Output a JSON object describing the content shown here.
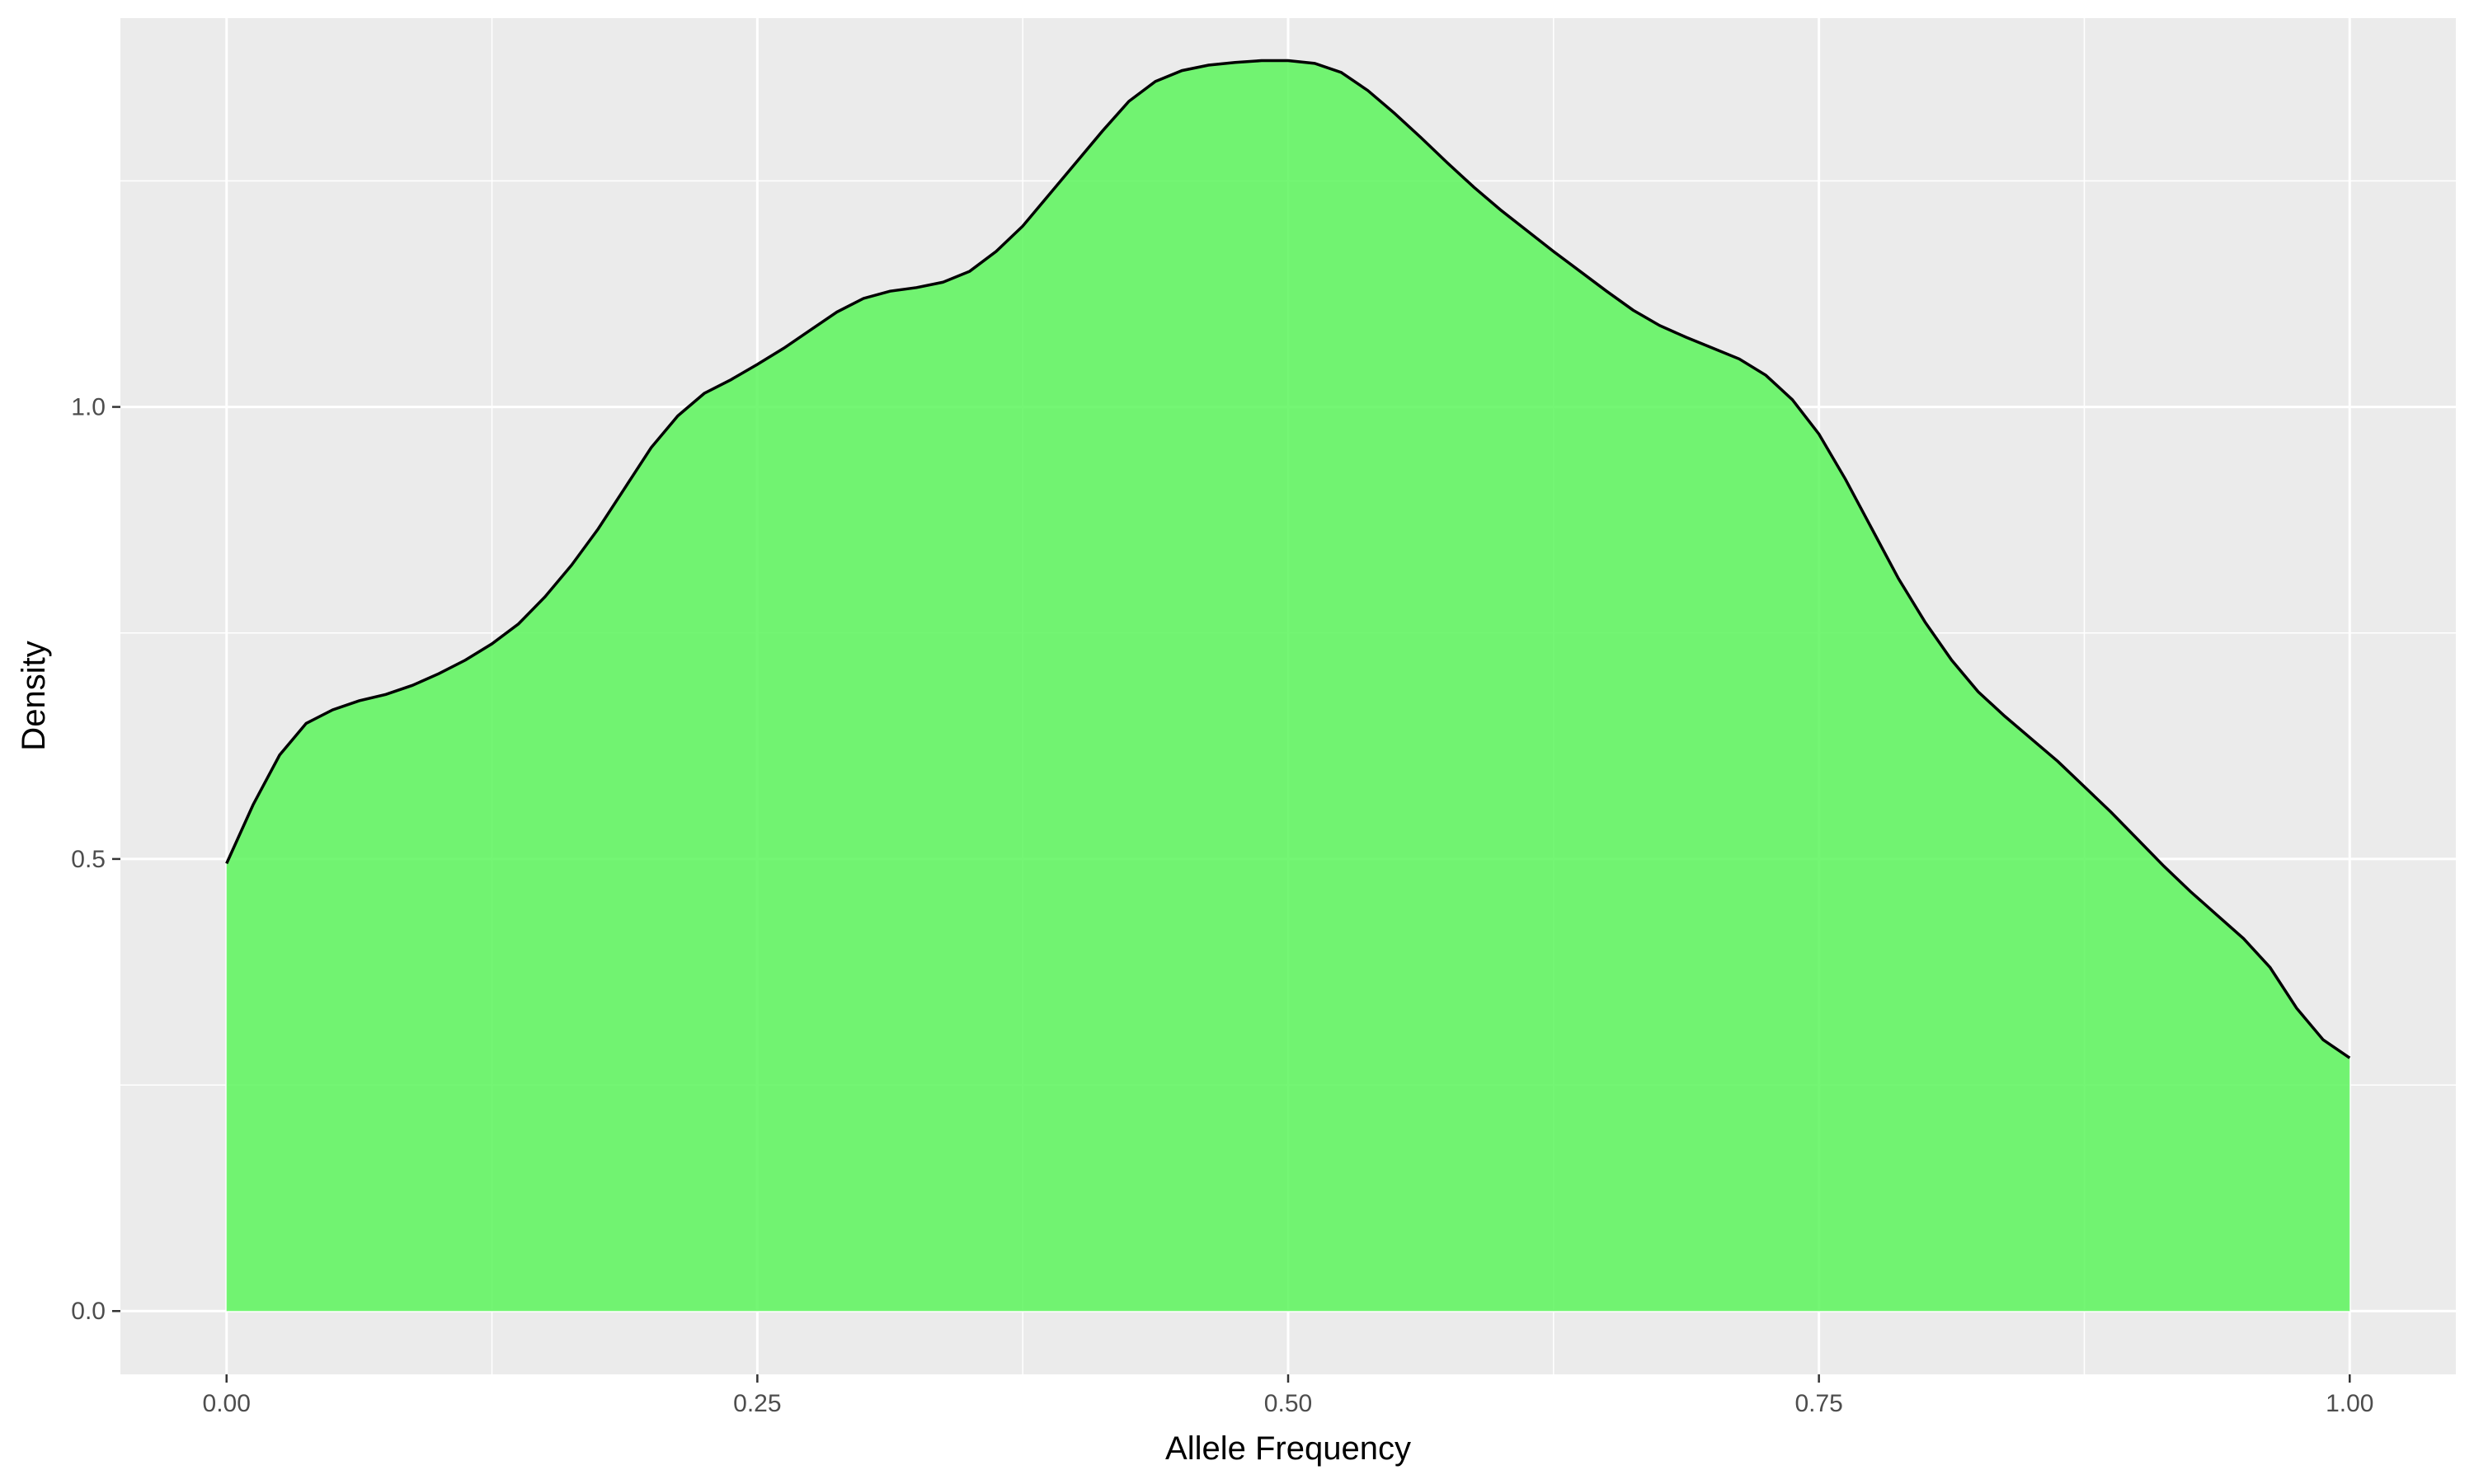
{
  "chart_data": {
    "type": "area",
    "xlabel": "Allele Frequency",
    "ylabel": "Density",
    "xlim": [
      -0.05,
      1.05
    ],
    "ylim": [
      -0.07,
      1.43
    ],
    "x_ticks": [
      0.0,
      0.25,
      0.5,
      0.75,
      1.0
    ],
    "x_tick_labels": [
      "0.00",
      "0.25",
      "0.50",
      "0.75",
      "1.00"
    ],
    "y_ticks": [
      0.0,
      0.5,
      1.0
    ],
    "y_tick_labels": [
      "0.0",
      "0.5",
      "1.0"
    ],
    "grid": true,
    "legend": "none",
    "colors": {
      "fill": "#5cf55c",
      "fill_opacity": 0.85,
      "line": "#000000",
      "panel": "#ebebeb",
      "grid": "#ffffff"
    },
    "series": [
      {
        "x": [
          0.0,
          0.0125,
          0.025,
          0.0375,
          0.05,
          0.0625,
          0.075,
          0.0875,
          0.1,
          0.1125,
          0.125,
          0.1375,
          0.15,
          0.1625,
          0.175,
          0.1875,
          0.2,
          0.2125,
          0.225,
          0.2375,
          0.25,
          0.2625,
          0.275,
          0.2875,
          0.3,
          0.3125,
          0.325,
          0.3375,
          0.35,
          0.3625,
          0.375,
          0.3875,
          0.4,
          0.4125,
          0.425,
          0.4375,
          0.45,
          0.4625,
          0.475,
          0.4875,
          0.5,
          0.5125,
          0.525,
          0.5375,
          0.55,
          0.5625,
          0.575,
          0.5875,
          0.6,
          0.6125,
          0.625,
          0.6375,
          0.65,
          0.6625,
          0.675,
          0.6875,
          0.7,
          0.7125,
          0.725,
          0.7375,
          0.75,
          0.7625,
          0.775,
          0.7875,
          0.8,
          0.8125,
          0.825,
          0.8375,
          0.85,
          0.8625,
          0.875,
          0.8875,
          0.9,
          0.9125,
          0.925,
          0.9375,
          0.95,
          0.9625,
          0.975,
          0.9875,
          1.0
        ],
        "y": [
          0.495,
          0.56,
          0.615,
          0.65,
          0.665,
          0.675,
          0.682,
          0.692,
          0.705,
          0.72,
          0.738,
          0.76,
          0.79,
          0.825,
          0.865,
          0.91,
          0.955,
          0.99,
          1.015,
          1.03,
          1.047,
          1.065,
          1.085,
          1.105,
          1.12,
          1.128,
          1.132,
          1.138,
          1.15,
          1.172,
          1.2,
          1.235,
          1.27,
          1.305,
          1.338,
          1.36,
          1.372,
          1.378,
          1.381,
          1.383,
          1.383,
          1.38,
          1.37,
          1.35,
          1.325,
          1.298,
          1.27,
          1.243,
          1.218,
          1.195,
          1.172,
          1.15,
          1.128,
          1.107,
          1.09,
          1.077,
          1.065,
          1.053,
          1.035,
          1.008,
          0.97,
          0.92,
          0.865,
          0.81,
          0.762,
          0.72,
          0.685,
          0.658,
          0.633,
          0.608,
          0.58,
          0.552,
          0.522,
          0.492,
          0.464,
          0.438,
          0.412,
          0.38,
          0.335,
          0.3,
          0.28
        ]
      }
    ]
  }
}
